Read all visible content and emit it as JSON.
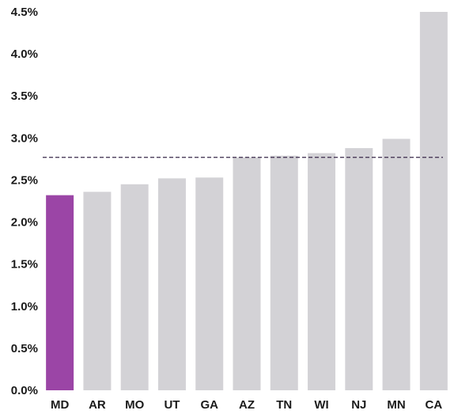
{
  "chart_data": {
    "type": "bar",
    "title": "",
    "xlabel": "",
    "ylabel": "",
    "categories": [
      "MD",
      "AR",
      "MO",
      "UT",
      "GA",
      "AZ",
      "TN",
      "WI",
      "NJ",
      "MN",
      "CA"
    ],
    "values": [
      2.32,
      2.36,
      2.45,
      2.52,
      2.53,
      2.77,
      2.79,
      2.82,
      2.88,
      2.99,
      4.5
    ],
    "ylim": [
      0,
      4.5
    ],
    "yticks": [
      0.0,
      0.5,
      1.0,
      1.5,
      2.0,
      2.5,
      3.0,
      3.5,
      4.0,
      4.5
    ],
    "ytick_labels": [
      "0.0%",
      "0.5%",
      "1.0%",
      "1.5%",
      "2.0%",
      "2.5%",
      "3.0%",
      "3.5%",
      "4.0%",
      "4.5%"
    ],
    "highlight_category": "MD",
    "reference_line": {
      "value": 2.77,
      "style": "dashed"
    },
    "grid": false,
    "legend": "none",
    "colors": {
      "highlight": "#9b45a6",
      "bar": "#d3d2d6",
      "reference_line": "#3a2a4a",
      "text": "#1a1a1a"
    }
  }
}
